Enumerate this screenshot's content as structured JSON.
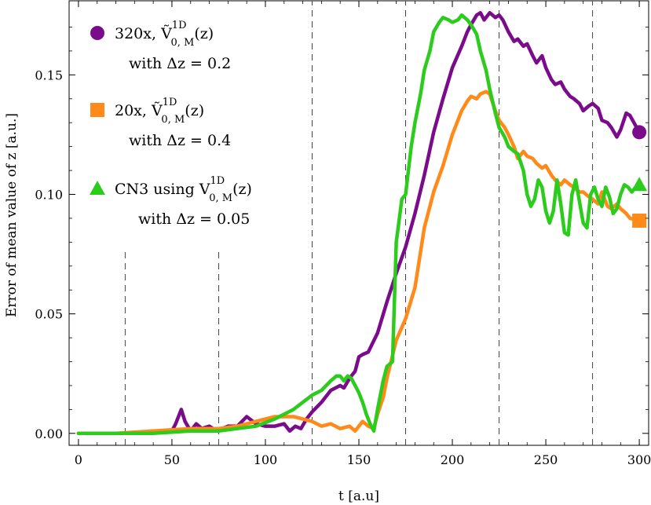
{
  "chart_data": {
    "type": "line",
    "xlabel": "t  [a.u]",
    "ylabel": "Error  of  mean  value  of  z  [a.u.]",
    "xlim": [
      -5,
      305
    ],
    "ylim": [
      -0.005,
      0.181
    ],
    "x_ticks": [
      0,
      50,
      100,
      150,
      200,
      250,
      300
    ],
    "y_ticks": [
      0.0,
      0.05,
      0.1,
      0.15
    ],
    "y_tick_labels": [
      "0.00",
      "0.05",
      "0.10",
      "0.15"
    ],
    "grid": false,
    "legend_placement": "top-left",
    "dashed_vlines": [
      {
        "x": 25,
        "ymax": 0.077
      },
      {
        "x": 75,
        "ymax": 0.076
      },
      {
        "x": 125,
        "ymax": 0.181
      },
      {
        "x": 175,
        "ymax": 0.181
      },
      {
        "x": 225,
        "ymax": 0.181
      },
      {
        "x": 275,
        "ymax": 0.181
      }
    ],
    "series": [
      {
        "name": "320x",
        "color": "#7a0c8c",
        "marker": "circle",
        "legend": {
          "line1_prefix": "320x,  ",
          "line1_symbol": "Ṽ",
          "line1_sup": "1D",
          "line1_sub": "0, M",
          "line1_suffix": "(z)",
          "line2": "with  Δz = 0.2"
        },
        "x": [
          0,
          10,
          20,
          30,
          40,
          50,
          52,
          55,
          57,
          60,
          63,
          66,
          70,
          74,
          80,
          85,
          90,
          95,
          100,
          105,
          110,
          113,
          116,
          119,
          122,
          125,
          130,
          135,
          140,
          142,
          145,
          148,
          150,
          152,
          155,
          160,
          165,
          170,
          175,
          180,
          185,
          190,
          195,
          200,
          205,
          208,
          210,
          213,
          215,
          217,
          220,
          223,
          225,
          227,
          230,
          233,
          235,
          238,
          240,
          243,
          245,
          248,
          250,
          253,
          255,
          258,
          260,
          263,
          265,
          268,
          270,
          273,
          275,
          278,
          280,
          283,
          285,
          288,
          290,
          293,
          295,
          300
        ],
        "y": [
          0.0,
          0.0,
          0.0,
          0.0,
          0.001,
          0.001,
          0.004,
          0.01,
          0.005,
          0.001,
          0.004,
          0.002,
          0.003,
          0.001,
          0.003,
          0.003,
          0.007,
          0.004,
          0.003,
          0.003,
          0.004,
          0.001,
          0.003,
          0.002,
          0.006,
          0.009,
          0.013,
          0.018,
          0.02,
          0.019,
          0.023,
          0.026,
          0.032,
          0.033,
          0.034,
          0.042,
          0.055,
          0.067,
          0.078,
          0.092,
          0.108,
          0.126,
          0.14,
          0.153,
          0.162,
          0.168,
          0.171,
          0.175,
          0.176,
          0.173,
          0.176,
          0.174,
          0.175,
          0.173,
          0.168,
          0.164,
          0.165,
          0.162,
          0.163,
          0.158,
          0.155,
          0.158,
          0.153,
          0.148,
          0.146,
          0.147,
          0.144,
          0.141,
          0.14,
          0.138,
          0.135,
          0.137,
          0.138,
          0.136,
          0.131,
          0.13,
          0.128,
          0.124,
          0.127,
          0.134,
          0.133,
          0.126
        ]
      },
      {
        "name": "20x",
        "color": "#ff8a1a",
        "marker": "square",
        "legend": {
          "line1_prefix": "20x,  ",
          "line1_symbol": "Ṽ",
          "line1_sup": "1D",
          "line1_sub": "0, M",
          "line1_suffix": "(z)",
          "line2": "with  Δz = 0.4"
        },
        "x": [
          0,
          20,
          40,
          60,
          75,
          85,
          95,
          105,
          115,
          125,
          130,
          135,
          140,
          145,
          148,
          150,
          152,
          155,
          158,
          160,
          163,
          165,
          170,
          175,
          180,
          185,
          190,
          195,
          200,
          205,
          208,
          210,
          213,
          215,
          218,
          220,
          223,
          225,
          228,
          230,
          233,
          235,
          238,
          240,
          243,
          245,
          248,
          250,
          253,
          255,
          258,
          260,
          263,
          265,
          268,
          270,
          273,
          275,
          278,
          280,
          283,
          285,
          288,
          290,
          293,
          295,
          300
        ],
        "y": [
          0.0,
          0.0,
          0.001,
          0.002,
          0.002,
          0.003,
          0.005,
          0.007,
          0.007,
          0.005,
          0.003,
          0.004,
          0.002,
          0.003,
          0.001,
          0.003,
          0.005,
          0.003,
          0.002,
          0.008,
          0.015,
          0.023,
          0.039,
          0.048,
          0.061,
          0.086,
          0.101,
          0.112,
          0.125,
          0.135,
          0.139,
          0.141,
          0.14,
          0.142,
          0.143,
          0.142,
          0.135,
          0.131,
          0.128,
          0.125,
          0.12,
          0.115,
          0.118,
          0.116,
          0.115,
          0.113,
          0.111,
          0.112,
          0.108,
          0.106,
          0.104,
          0.106,
          0.104,
          0.103,
          0.101,
          0.101,
          0.099,
          0.098,
          0.096,
          0.101,
          0.095,
          0.094,
          0.096,
          0.094,
          0.092,
          0.09,
          0.089
        ]
      },
      {
        "name": "CN3",
        "color": "#2ccc1c",
        "marker": "triangle",
        "legend": {
          "line1_prefix": "CN3 using ",
          "line1_symbol": "V",
          "line1_sup": "1D",
          "line1_sub": "0, M",
          "line1_suffix": "(z)",
          "line2": "with  Δz = 0.05"
        },
        "x": [
          0,
          20,
          40,
          60,
          75,
          85,
          95,
          105,
          115,
          120,
          125,
          130,
          135,
          138,
          140,
          142,
          144,
          146,
          148,
          150,
          152,
          154,
          156,
          158,
          160,
          163,
          165,
          168,
          170,
          173,
          175,
          178,
          180,
          183,
          185,
          188,
          190,
          193,
          195,
          198,
          200,
          203,
          205,
          208,
          210,
          213,
          215,
          218,
          220,
          223,
          225,
          228,
          230,
          233,
          235,
          238,
          240,
          242,
          244,
          246,
          248,
          250,
          252,
          254,
          256,
          258,
          260,
          262,
          264,
          266,
          268,
          270,
          272,
          274,
          276,
          278,
          280,
          282,
          284,
          286,
          288,
          290,
          292,
          294,
          296,
          298,
          300
        ],
        "y": [
          0.0,
          0.0,
          0.0,
          0.001,
          0.001,
          0.002,
          0.003,
          0.006,
          0.01,
          0.013,
          0.016,
          0.018,
          0.022,
          0.024,
          0.024,
          0.022,
          0.024,
          0.023,
          0.02,
          0.017,
          0.013,
          0.008,
          0.004,
          0.001,
          0.01,
          0.022,
          0.028,
          0.03,
          0.08,
          0.098,
          0.1,
          0.12,
          0.13,
          0.142,
          0.152,
          0.16,
          0.168,
          0.172,
          0.174,
          0.173,
          0.172,
          0.173,
          0.175,
          0.173,
          0.171,
          0.167,
          0.16,
          0.152,
          0.144,
          0.134,
          0.128,
          0.124,
          0.12,
          0.118,
          0.117,
          0.11,
          0.1,
          0.095,
          0.098,
          0.106,
          0.103,
          0.093,
          0.088,
          0.093,
          0.106,
          0.096,
          0.084,
          0.083,
          0.1,
          0.106,
          0.097,
          0.088,
          0.086,
          0.1,
          0.103,
          0.098,
          0.095,
          0.103,
          0.099,
          0.092,
          0.094,
          0.1,
          0.104,
          0.103,
          0.101,
          0.103,
          0.104
        ]
      }
    ]
  }
}
